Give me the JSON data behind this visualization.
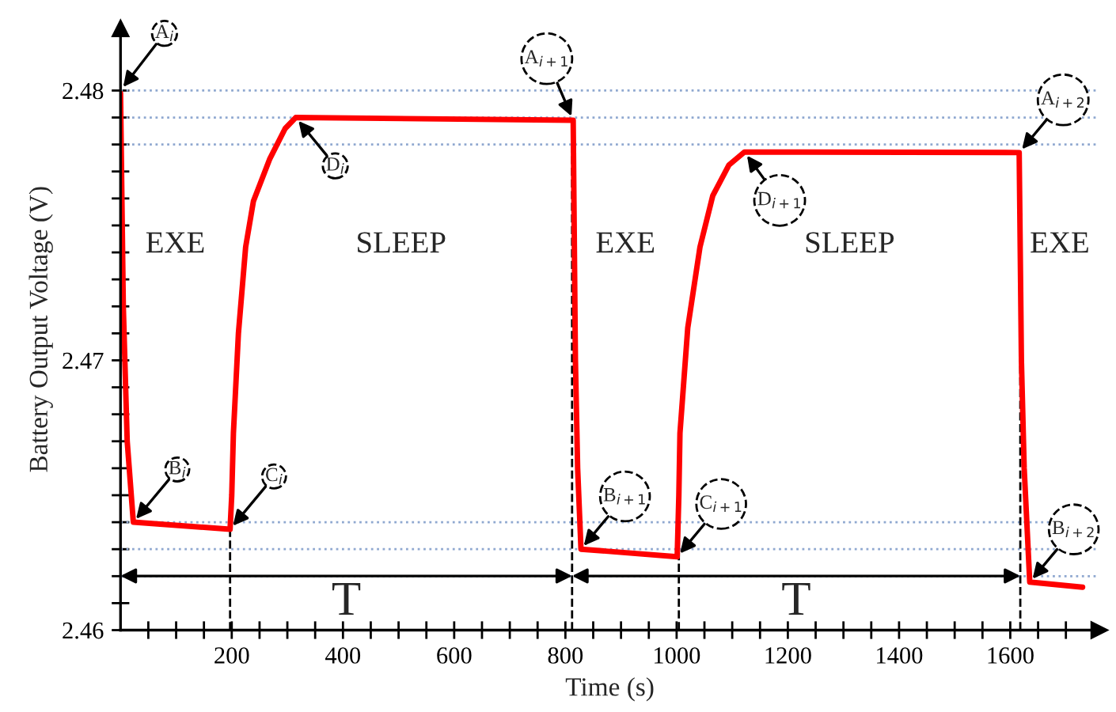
{
  "chart_data": {
    "type": "line",
    "xlabel": "Time (s)",
    "ylabel": "Battery Output Voltage (V)",
    "xlim": [
      0,
      1760
    ],
    "ylim": [
      2.46,
      2.4823
    ],
    "xticks": [
      {
        "value": 50,
        "label": null
      },
      {
        "value": 100,
        "label": null
      },
      {
        "value": 150,
        "label": null
      },
      200,
      {
        "value": 250,
        "label": null
      },
      {
        "value": 300,
        "label": null
      },
      {
        "value": 350,
        "label": null
      },
      400,
      {
        "value": 450,
        "label": null
      },
      {
        "value": 500,
        "label": null
      },
      {
        "value": 550,
        "label": null
      },
      600,
      {
        "value": 650,
        "label": null
      },
      {
        "value": 700,
        "label": null
      },
      {
        "value": 750,
        "label": null
      },
      800,
      {
        "value": 850,
        "label": null
      },
      {
        "value": 900,
        "label": null
      },
      {
        "value": 950,
        "label": null
      },
      1000,
      {
        "value": 1050,
        "label": null
      },
      {
        "value": 1100,
        "label": null
      },
      {
        "value": 1150,
        "label": null
      },
      1200,
      {
        "value": 1250,
        "label": null
      },
      {
        "value": 1300,
        "label": null
      },
      {
        "value": 1350,
        "label": null
      },
      1400,
      {
        "value": 1450,
        "label": null
      },
      {
        "value": 1500,
        "label": null
      },
      {
        "value": 1550,
        "label": null
      },
      1600,
      {
        "value": 1650,
        "label": null
      },
      {
        "value": 1700,
        "label": null
      }
    ],
    "yticks": [
      2.46,
      {
        "value": 2.461,
        "label": null
      },
      {
        "value": 2.462,
        "label": null
      },
      {
        "value": 2.463,
        "label": null
      },
      {
        "value": 2.464,
        "label": null
      },
      {
        "value": 2.465,
        "label": null
      },
      {
        "value": 2.466,
        "label": null
      },
      {
        "value": 2.467,
        "label": null
      },
      {
        "value": 2.468,
        "label": null
      },
      {
        "value": 2.469,
        "label": null
      },
      2.47,
      {
        "value": 2.471,
        "label": null
      },
      {
        "value": 2.472,
        "label": null
      },
      {
        "value": 2.473,
        "label": null
      },
      {
        "value": 2.474,
        "label": null
      },
      {
        "value": 2.475,
        "label": null
      },
      {
        "value": 2.476,
        "label": null
      },
      {
        "value": 2.477,
        "label": null
      },
      {
        "value": 2.478,
        "label": null
      },
      {
        "value": 2.479,
        "label": null
      },
      2.48
    ],
    "grid": false,
    "legend": false,
    "marker": "none",
    "line_style": "solid",
    "series": [
      {
        "color": "#ff0000",
        "x": [
          0,
          5,
          12,
          23,
          197,
          200,
          203,
          212,
          225,
          239,
          268,
          296,
          315,
          814,
          818,
          822,
          828,
          1001,
          1004,
          1006,
          1020,
          1042,
          1065,
          1094,
          1122,
          1616,
          1620,
          1625,
          1635,
          1730
        ],
        "values": [
          2.4799,
          2.472,
          2.467,
          2.464,
          2.46374,
          2.465,
          2.4673,
          2.471,
          2.4742,
          2.4759,
          2.47745,
          2.47859,
          2.479,
          2.4789,
          2.47,
          2.466,
          2.463,
          2.46272,
          2.465,
          2.4673,
          2.4712,
          2.4742,
          2.4761,
          2.47724,
          2.47772,
          2.4777,
          2.47,
          2.466,
          2.46178,
          2.46159
        ]
      }
    ],
    "ref_lines": [
      {
        "axis": "y",
        "value": 2.48,
        "color": "#8fa8d0",
        "line_style": "dotted"
      },
      {
        "axis": "y",
        "value": 2.479,
        "color": "#8fa8d0",
        "line_style": "dotted"
      },
      {
        "axis": "y",
        "value": 2.478,
        "color": "#8fa8d0",
        "line_style": "dotted"
      },
      {
        "axis": "y",
        "value": 2.464,
        "color": "#8fa8d0",
        "line_style": "dotted"
      },
      {
        "axis": "y",
        "value": 2.463,
        "color": "#8fa8d0",
        "line_style": "dotted"
      },
      {
        "axis": "y",
        "value": 2.462,
        "color": "#8fa8d0",
        "line_style": "dotted"
      },
      {
        "axis": "x",
        "value": 197,
        "color": "#000000",
        "line_style": "dashed"
      },
      {
        "axis": "x",
        "value": 812,
        "color": "#000000",
        "line_style": "dashed"
      },
      {
        "axis": "x",
        "value": 1004,
        "color": "#000000",
        "line_style": "dashed"
      },
      {
        "axis": "x",
        "value": 1618,
        "color": "#000000",
        "line_style": "dashed"
      }
    ],
    "annotations": [
      {
        "text": "A$_{i}$",
        "x": 0,
        "y": 2.48
      },
      {
        "text": "B$_{i}$",
        "x": 23,
        "y": 2.464
      },
      {
        "text": "C$_{i}$",
        "x": 197,
        "y": 2.46374
      },
      {
        "text": "D$_{i}$",
        "x": 315,
        "y": 2.479
      },
      {
        "text": "A$_{i+1}$",
        "x": 814,
        "y": 2.4789
      },
      {
        "text": "B$_{i+1}$",
        "x": 828,
        "y": 2.463
      },
      {
        "text": "C$_{i+1}$",
        "x": 1001,
        "y": 2.46272
      },
      {
        "text": "D$_{i+1}$",
        "x": 1122,
        "y": 2.47772
      },
      {
        "text": "A$_{i+2}$",
        "x": 1616,
        "y": 2.4777
      },
      {
        "text": "B$_{i+2}$",
        "x": 1635,
        "y": 2.46178
      },
      "EXE",
      "SLEEP",
      "EXE",
      "SLEEP",
      "EXE",
      "T",
      "T"
    ]
  }
}
